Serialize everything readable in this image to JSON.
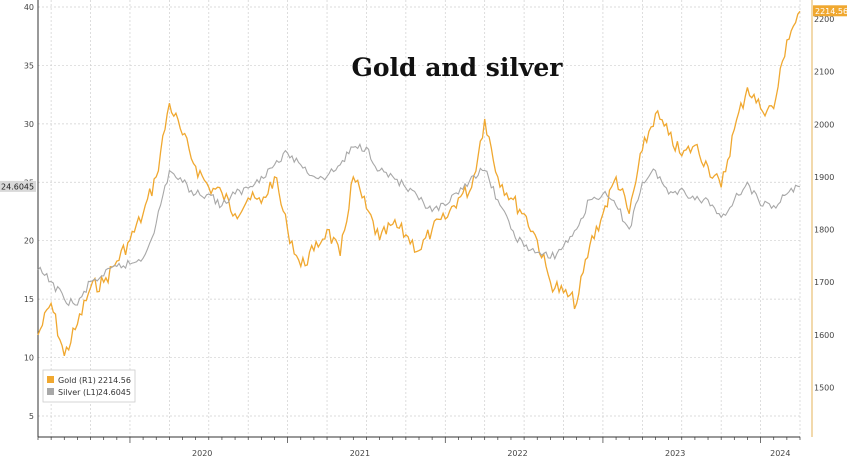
{
  "chart_data": {
    "type": "line",
    "title": "Gold and silver",
    "x_ticks": [
      "2020",
      "2021",
      "2022",
      "2023",
      "2024"
    ],
    "y_left": {
      "ticks": [
        5,
        10,
        15,
        20,
        25,
        30,
        35,
        40
      ],
      "range": [
        3.2,
        40.6
      ]
    },
    "y_right": {
      "ticks": [
        1500,
        1600,
        1700,
        1800,
        1900,
        2000,
        2100,
        2200
      ],
      "range": [
        1406,
        2236
      ]
    },
    "grid": true,
    "legend_position": "bottom-left",
    "series": [
      {
        "name": "Gold (R1)",
        "axis": "right",
        "color": "#f0a830",
        "last_value_label": "2214.56",
        "points": [
          [
            "2019-06",
            1600
          ],
          [
            "2019-07",
            1660
          ],
          [
            "2019-08",
            1560
          ],
          [
            "2019-09",
            1620
          ],
          [
            "2019-10",
            1690
          ],
          [
            "2019-11",
            1700
          ],
          [
            "2019-12",
            1740
          ],
          [
            "2020-01",
            1780
          ],
          [
            "2020-02",
            1830
          ],
          [
            "2020-03",
            1900
          ],
          [
            "2020-04",
            2040
          ],
          [
            "2020-05",
            1980
          ],
          [
            "2020-06",
            1920
          ],
          [
            "2020-07",
            1880
          ],
          [
            "2020-08",
            1870
          ],
          [
            "2020-09",
            1830
          ],
          [
            "2020-10",
            1860
          ],
          [
            "2020-11",
            1850
          ],
          [
            "2020-12",
            1900
          ],
          [
            "2021-01",
            1800
          ],
          [
            "2021-02",
            1730
          ],
          [
            "2021-03",
            1760
          ],
          [
            "2021-04",
            1800
          ],
          [
            "2021-05",
            1750
          ],
          [
            "2021-06",
            1900
          ],
          [
            "2021-07",
            1840
          ],
          [
            "2021-08",
            1780
          ],
          [
            "2021-09",
            1810
          ],
          [
            "2021-10",
            1790
          ],
          [
            "2021-11",
            1760
          ],
          [
            "2021-12",
            1800
          ],
          [
            "2022-01",
            1820
          ],
          [
            "2022-02",
            1860
          ],
          [
            "2022-03",
            1880
          ],
          [
            "2022-04",
            2010
          ],
          [
            "2022-05",
            1900
          ],
          [
            "2022-06",
            1860
          ],
          [
            "2022-07",
            1830
          ],
          [
            "2022-08",
            1780
          ],
          [
            "2022-09",
            1700
          ],
          [
            "2022-10",
            1680
          ],
          [
            "2022-11",
            1660
          ],
          [
            "2022-12",
            1770
          ],
          [
            "2023-01",
            1830
          ],
          [
            "2023-02",
            1900
          ],
          [
            "2023-03",
            1830
          ],
          [
            "2023-04",
            1950
          ],
          [
            "2023-05",
            2020
          ],
          [
            "2023-06",
            1980
          ],
          [
            "2023-07",
            1940
          ],
          [
            "2023-08",
            1960
          ],
          [
            "2023-09",
            1920
          ],
          [
            "2023-10",
            1880
          ],
          [
            "2023-11",
            1990
          ],
          [
            "2023-12",
            2070
          ],
          [
            "2024-01",
            2030
          ],
          [
            "2024-02",
            2030
          ],
          [
            "2024-03",
            2160
          ],
          [
            "2024-04",
            2214.56
          ]
        ]
      },
      {
        "name": "Silver (L1)",
        "axis": "left",
        "color": "#a8a8a8",
        "last_value_label": "24.6045",
        "points": [
          [
            "2019-06",
            17.5
          ],
          [
            "2019-07",
            16.5
          ],
          [
            "2019-08",
            15.0
          ],
          [
            "2019-09",
            14.5
          ],
          [
            "2019-10",
            16.5
          ],
          [
            "2019-11",
            17.0
          ],
          [
            "2019-12",
            17.8
          ],
          [
            "2020-01",
            18.0
          ],
          [
            "2020-02",
            18.5
          ],
          [
            "2020-03",
            21.5
          ],
          [
            "2020-04",
            26.0
          ],
          [
            "2020-05",
            25.0
          ],
          [
            "2020-06",
            24.0
          ],
          [
            "2020-07",
            24.0
          ],
          [
            "2020-08",
            23.0
          ],
          [
            "2020-09",
            24.0
          ],
          [
            "2020-10",
            24.5
          ],
          [
            "2020-11",
            25.5
          ],
          [
            "2020-12",
            26.5
          ],
          [
            "2021-01",
            27.5
          ],
          [
            "2021-02",
            26.5
          ],
          [
            "2021-03",
            25.5
          ],
          [
            "2021-04",
            25.5
          ],
          [
            "2021-05",
            26.5
          ],
          [
            "2021-06",
            28.0
          ],
          [
            "2021-07",
            28.0
          ],
          [
            "2021-08",
            26.0
          ],
          [
            "2021-09",
            25.5
          ],
          [
            "2021-10",
            24.5
          ],
          [
            "2021-11",
            23.5
          ],
          [
            "2021-12",
            22.5
          ],
          [
            "2022-01",
            23.0
          ],
          [
            "2022-02",
            24.0
          ],
          [
            "2022-03",
            25.5
          ],
          [
            "2022-04",
            26.0
          ],
          [
            "2022-05",
            23.5
          ],
          [
            "2022-06",
            21.0
          ],
          [
            "2022-07",
            19.5
          ],
          [
            "2022-08",
            19.0
          ],
          [
            "2022-09",
            18.5
          ],
          [
            "2022-10",
            19.5
          ],
          [
            "2022-11",
            21.0
          ],
          [
            "2022-12",
            23.5
          ],
          [
            "2023-01",
            24.0
          ],
          [
            "2023-02",
            23.0
          ],
          [
            "2023-03",
            21.0
          ],
          [
            "2023-04",
            25.0
          ],
          [
            "2023-05",
            26.0
          ],
          [
            "2023-06",
            24.0
          ],
          [
            "2023-07",
            24.5
          ],
          [
            "2023-08",
            23.5
          ],
          [
            "2023-09",
            23.5
          ],
          [
            "2023-10",
            22.0
          ],
          [
            "2023-11",
            23.5
          ],
          [
            "2023-12",
            25.0
          ],
          [
            "2024-01",
            23.0
          ],
          [
            "2024-02",
            23.0
          ],
          [
            "2024-03",
            24.0
          ],
          [
            "2024-04",
            24.6045
          ]
        ]
      }
    ]
  }
}
